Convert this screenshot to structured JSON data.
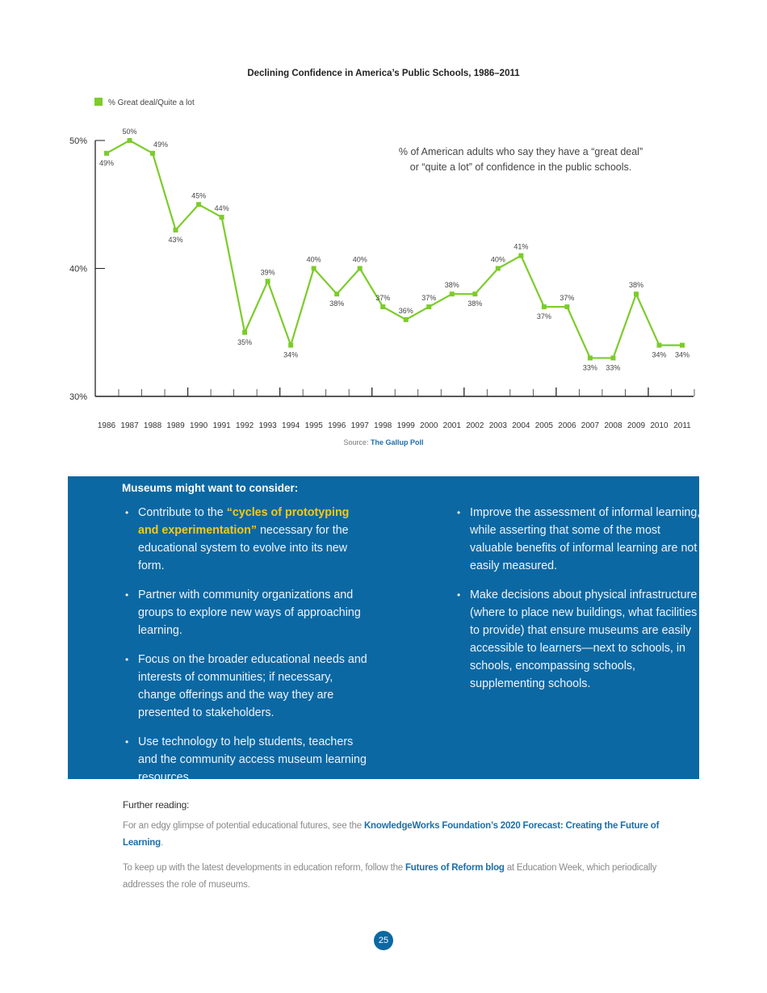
{
  "chart_data": {
    "type": "line",
    "title": "Declining Confidence in America’s Public Schools, 1986–2011",
    "legend": {
      "label": "% Great deal/Quite a lot",
      "position": "top-left",
      "color": "#7ccc2a"
    },
    "annotation": [
      "% of American adults who say they have a “great deal”",
      "or “quite a lot” of confidence in the public schools."
    ],
    "categories": [
      "1986",
      "1987",
      "1988",
      "1989",
      "1990",
      "1991",
      "1992",
      "1993",
      "1994",
      "1995",
      "1996",
      "1997",
      "1998",
      "1999",
      "2000",
      "2001",
      "2002",
      "2003",
      "2004",
      "2005",
      "2006",
      "2007",
      "2008",
      "2009",
      "2010",
      "2011"
    ],
    "series": [
      {
        "name": "% Great deal/Quite a lot",
        "values": [
          49,
          50,
          49,
          43,
          45,
          44,
          35,
          39,
          34,
          40,
          38,
          40,
          37,
          36,
          37,
          38,
          38,
          40,
          41,
          37,
          37,
          33,
          33,
          38,
          34,
          34
        ]
      }
    ],
    "data_labels": [
      "49%",
      "50%",
      "49%",
      "43%",
      "45%",
      "44%",
      "35%",
      "39%",
      "34%",
      "40%",
      "38%",
      "40%",
      "37%",
      "36%",
      "37%",
      "38%",
      "38%",
      "40%",
      "41%",
      "37%",
      "37%",
      "33%",
      "33%",
      "38%",
      "34%",
      "34%"
    ],
    "yticks": [
      "30%",
      "40%",
      "50%"
    ],
    "ylim": [
      30,
      50
    ],
    "grid": false,
    "source_prefix": "Source:",
    "source_link": "The Gallup Poll"
  },
  "box": {
    "heading": "Museums might want to consider:",
    "left": [
      {
        "pre": "Contribute to the ",
        "highlight": "“cycles of prototyping and experimentation”",
        "post": " necessary for the educational system to evolve into its new form."
      },
      {
        "text": "Partner with community organizations and groups to explore new ways of approaching learning."
      },
      {
        "text": "Focus on the broader educational needs and interests of communities; if necessary, change offerings and the way they are presented to stakeholders."
      },
      {
        "text": "Use technology to help students, teachers and the community access museum learning resources."
      }
    ],
    "right": [
      {
        "text": "Improve the assessment of informal learning, while asserting that some of the most valuable benefits of informal learning are not easily measured."
      },
      {
        "text": "Make decisions about physical infrastructure (where to place new buildings, what facilities to provide) that ensure museums are easily accessible to learners—next to schools, in schools, encompassing schools, supplementing schools."
      }
    ]
  },
  "further": {
    "heading": "Further reading:",
    "p1_pre": "For an edgy glimpse of potential educational futures, see the ",
    "p1_link": "KnowledgeWorks Foundation’s 2020 Forecast: Creating the Future of Learning",
    "p1_post": ".",
    "p2_pre": "To keep up with the latest developments in education reform, follow the ",
    "p2_link": "Futures of Reform blog",
    "p2_post": " at Education Week, which periodically addresses the role of museums."
  },
  "page_number": "25"
}
